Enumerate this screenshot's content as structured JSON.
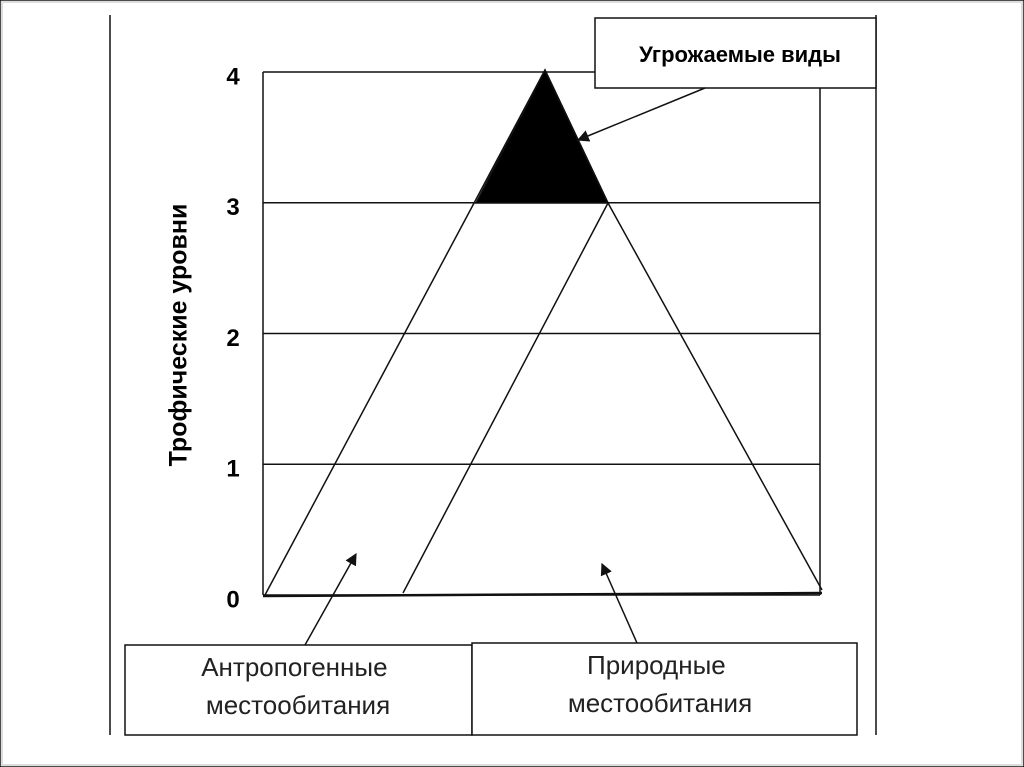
{
  "axis_title": "Трофические уровни",
  "levels": [
    0,
    1,
    2,
    3,
    4
  ],
  "threatened_label": "Угрожаемые виды",
  "anthropogenic_label": "Антропогенные местообитания",
  "natural_label": "Природные местообитания"
}
